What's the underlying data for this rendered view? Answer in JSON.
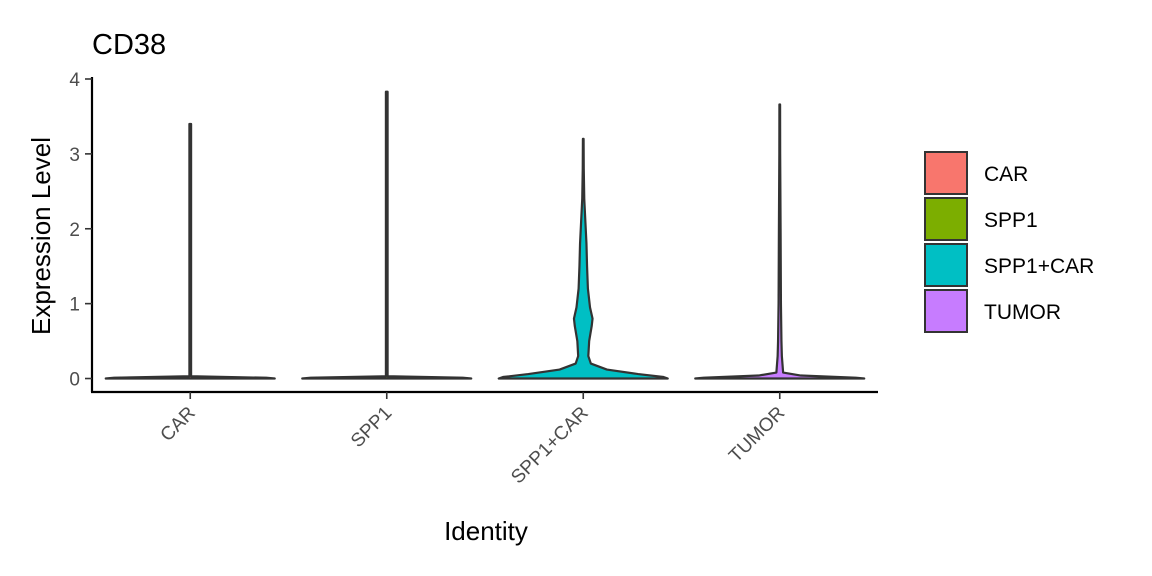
{
  "chart_data": {
    "type": "violin",
    "title": "CD38",
    "xlabel": "Identity",
    "ylabel": "Expression Level",
    "ylim": [
      -0.18,
      4.0
    ],
    "yticks": [
      0,
      1,
      2,
      3,
      4
    ],
    "categories": [
      "CAR",
      "SPP1",
      "SPP1+CAR",
      "TUMOR"
    ],
    "x_tick_rotation": "45 degrees",
    "legend_position": "right",
    "legend": [
      {
        "label": "CAR",
        "color": "#F8766D"
      },
      {
        "label": "SPP1",
        "color": "#7CAE00"
      },
      {
        "label": "SPP1+CAR",
        "color": "#00BFC4"
      },
      {
        "label": "TUMOR",
        "color": "#C77CFF"
      }
    ],
    "violins": [
      {
        "name": "CAR",
        "color": "#F8766D",
        "max": 3.4,
        "profile": [
          [
            0,
            1.0
          ],
          [
            0.01,
            0.9
          ],
          [
            0.03,
            0.01
          ],
          [
            3.4,
            0.01
          ]
        ]
      },
      {
        "name": "SPP1",
        "color": "#7CAE00",
        "max": 3.83,
        "profile": [
          [
            0,
            1.0
          ],
          [
            0.01,
            0.9
          ],
          [
            0.03,
            0.01
          ],
          [
            3.83,
            0.01
          ]
        ]
      },
      {
        "name": "SPP1+CAR",
        "color": "#00BFC4",
        "max": 3.2,
        "profile": [
          [
            0,
            1.0
          ],
          [
            0.02,
            0.95
          ],
          [
            0.06,
            0.65
          ],
          [
            0.12,
            0.28
          ],
          [
            0.2,
            0.09
          ],
          [
            0.3,
            0.06
          ],
          [
            0.5,
            0.07
          ],
          [
            0.7,
            0.1
          ],
          [
            0.8,
            0.11
          ],
          [
            0.95,
            0.08
          ],
          [
            1.2,
            0.055
          ],
          [
            1.5,
            0.045
          ],
          [
            1.8,
            0.038
          ],
          [
            2.1,
            0.025
          ],
          [
            2.4,
            0.012
          ],
          [
            2.8,
            0.006
          ],
          [
            3.2,
            0.004
          ]
        ]
      },
      {
        "name": "TUMOR",
        "color": "#C77CFF",
        "max": 3.66,
        "profile": [
          [
            0,
            1.0
          ],
          [
            0.01,
            0.9
          ],
          [
            0.04,
            0.25
          ],
          [
            0.08,
            0.04
          ],
          [
            0.3,
            0.025
          ],
          [
            0.5,
            0.02
          ],
          [
            1.0,
            0.014
          ],
          [
            2.0,
            0.01
          ],
          [
            3.0,
            0.005
          ],
          [
            3.66,
            0.004
          ]
        ]
      }
    ]
  }
}
